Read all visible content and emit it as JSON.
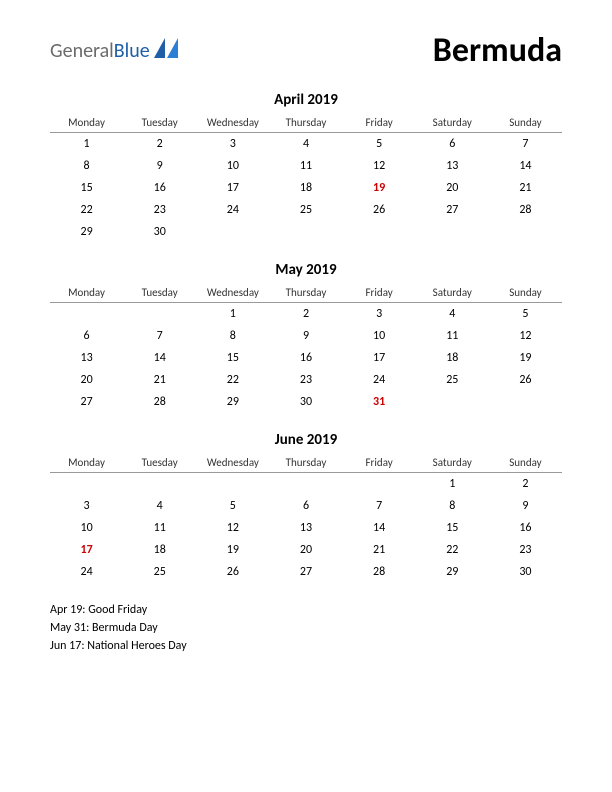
{
  "logo": {
    "general": "General",
    "blue": "Blue"
  },
  "country": "Bermuda",
  "day_headers": [
    "Monday",
    "Tuesday",
    "Wednesday",
    "Thursday",
    "Friday",
    "Saturday",
    "Sunday"
  ],
  "months": [
    {
      "title": "April 2019",
      "weeks": [
        [
          {
            "d": "1"
          },
          {
            "d": "2"
          },
          {
            "d": "3"
          },
          {
            "d": "4"
          },
          {
            "d": "5"
          },
          {
            "d": "6"
          },
          {
            "d": "7"
          }
        ],
        [
          {
            "d": "8"
          },
          {
            "d": "9"
          },
          {
            "d": "10"
          },
          {
            "d": "11"
          },
          {
            "d": "12"
          },
          {
            "d": "13"
          },
          {
            "d": "14"
          }
        ],
        [
          {
            "d": "15"
          },
          {
            "d": "16"
          },
          {
            "d": "17"
          },
          {
            "d": "18"
          },
          {
            "d": "19",
            "h": true
          },
          {
            "d": "20"
          },
          {
            "d": "21"
          }
        ],
        [
          {
            "d": "22"
          },
          {
            "d": "23"
          },
          {
            "d": "24"
          },
          {
            "d": "25"
          },
          {
            "d": "26"
          },
          {
            "d": "27"
          },
          {
            "d": "28"
          }
        ],
        [
          {
            "d": "29"
          },
          {
            "d": "30"
          },
          {
            "d": ""
          },
          {
            "d": ""
          },
          {
            "d": ""
          },
          {
            "d": ""
          },
          {
            "d": ""
          }
        ]
      ]
    },
    {
      "title": "May 2019",
      "weeks": [
        [
          {
            "d": ""
          },
          {
            "d": ""
          },
          {
            "d": "1"
          },
          {
            "d": "2"
          },
          {
            "d": "3"
          },
          {
            "d": "4"
          },
          {
            "d": "5"
          }
        ],
        [
          {
            "d": "6"
          },
          {
            "d": "7"
          },
          {
            "d": "8"
          },
          {
            "d": "9"
          },
          {
            "d": "10"
          },
          {
            "d": "11"
          },
          {
            "d": "12"
          }
        ],
        [
          {
            "d": "13"
          },
          {
            "d": "14"
          },
          {
            "d": "15"
          },
          {
            "d": "16"
          },
          {
            "d": "17"
          },
          {
            "d": "18"
          },
          {
            "d": "19"
          }
        ],
        [
          {
            "d": "20"
          },
          {
            "d": "21"
          },
          {
            "d": "22"
          },
          {
            "d": "23"
          },
          {
            "d": "24"
          },
          {
            "d": "25"
          },
          {
            "d": "26"
          }
        ],
        [
          {
            "d": "27"
          },
          {
            "d": "28"
          },
          {
            "d": "29"
          },
          {
            "d": "30"
          },
          {
            "d": "31",
            "h": true
          },
          {
            "d": ""
          },
          {
            "d": ""
          }
        ]
      ]
    },
    {
      "title": "June 2019",
      "weeks": [
        [
          {
            "d": ""
          },
          {
            "d": ""
          },
          {
            "d": ""
          },
          {
            "d": ""
          },
          {
            "d": ""
          },
          {
            "d": "1"
          },
          {
            "d": "2"
          }
        ],
        [
          {
            "d": "3"
          },
          {
            "d": "4"
          },
          {
            "d": "5"
          },
          {
            "d": "6"
          },
          {
            "d": "7"
          },
          {
            "d": "8"
          },
          {
            "d": "9"
          }
        ],
        [
          {
            "d": "10"
          },
          {
            "d": "11"
          },
          {
            "d": "12"
          },
          {
            "d": "13"
          },
          {
            "d": "14"
          },
          {
            "d": "15"
          },
          {
            "d": "16"
          }
        ],
        [
          {
            "d": "17",
            "h": true
          },
          {
            "d": "18"
          },
          {
            "d": "19"
          },
          {
            "d": "20"
          },
          {
            "d": "21"
          },
          {
            "d": "22"
          },
          {
            "d": "23"
          }
        ],
        [
          {
            "d": "24"
          },
          {
            "d": "25"
          },
          {
            "d": "26"
          },
          {
            "d": "27"
          },
          {
            "d": "28"
          },
          {
            "d": "29"
          },
          {
            "d": "30"
          }
        ]
      ]
    }
  ],
  "holidays": [
    "Apr 19: Good Friday",
    "May 31: Bermuda Day",
    "Jun 17: National Heroes Day"
  ],
  "colors": {
    "holiday": "#cc0000",
    "text": "#000000",
    "logo_blue": "#1e5fa8",
    "logo_gray": "#6b6b6b"
  }
}
